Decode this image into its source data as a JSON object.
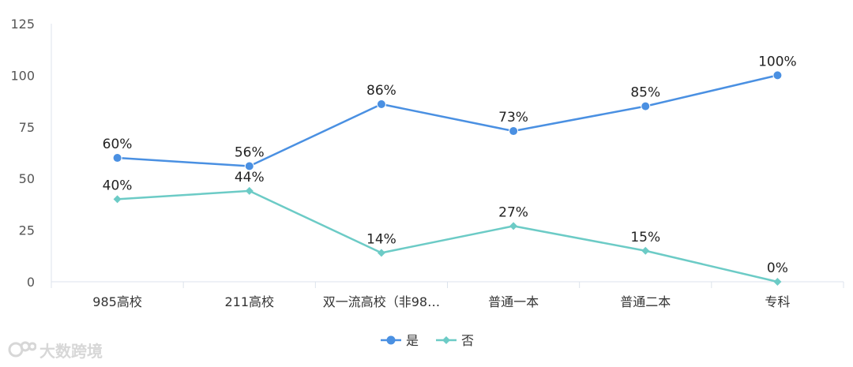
{
  "chart_data": {
    "type": "line",
    "categories": [
      "985高校",
      "211高校",
      "双一流高校（非98…",
      "普通一本",
      "普通二本",
      "专科"
    ],
    "series": [
      {
        "name": "是",
        "values": [
          60,
          56,
          86,
          73,
          85,
          100
        ],
        "labels": [
          "60%",
          "56%",
          "86%",
          "73%",
          "85%",
          "100%"
        ],
        "color": "#4a90e2",
        "marker": "circle"
      },
      {
        "name": "否",
        "values": [
          40,
          44,
          14,
          27,
          15,
          0
        ],
        "labels": [
          "40%",
          "44%",
          "14%",
          "27%",
          "15%",
          "0%"
        ],
        "color": "#6ccbc6",
        "marker": "diamond"
      }
    ],
    "yticks": [
      0,
      25,
      50,
      75,
      100,
      125
    ],
    "ylim": [
      0,
      125
    ],
    "grid": false,
    "legend": "bottom-center"
  },
  "watermark": {
    "text": "大数跨境"
  },
  "colors": {
    "axis": "#dce3ec",
    "tick_text": "#555555"
  }
}
